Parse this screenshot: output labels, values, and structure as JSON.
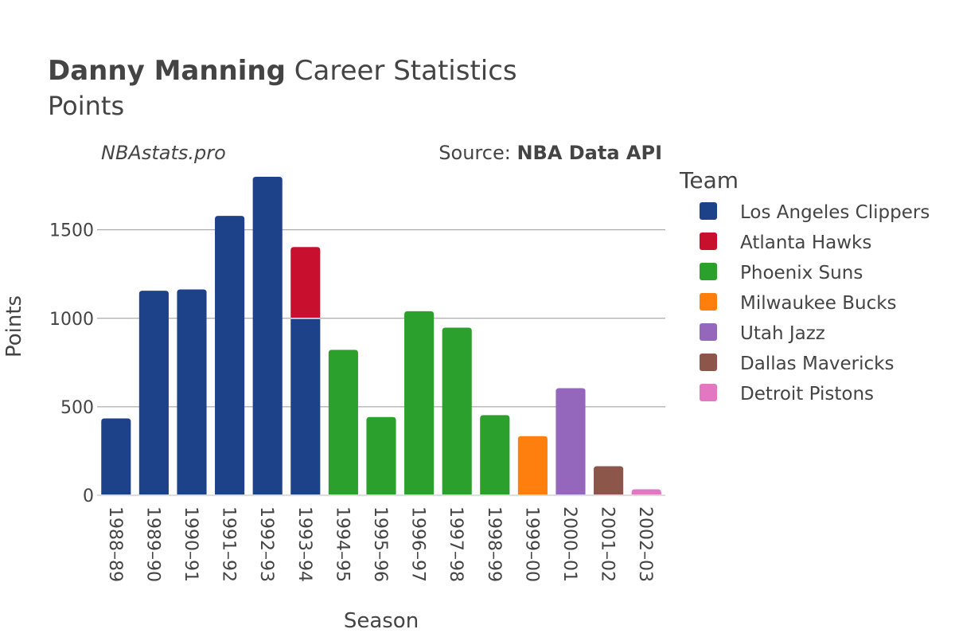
{
  "title": {
    "player": "Danny Manning",
    "rest": " Career Statistics",
    "subtitle": "Points"
  },
  "credits": {
    "site": "NBAstats.pro",
    "source_prefix": "Source: ",
    "source_name": "NBA Data API"
  },
  "legend": {
    "title": "Team",
    "items": [
      {
        "name": "Los Angeles Clippers",
        "color": "#1d428a"
      },
      {
        "name": "Atlanta Hawks",
        "color": "#c8102e"
      },
      {
        "name": "Phoenix Suns",
        "color": "#2ca02c"
      },
      {
        "name": "Milwaukee Bucks",
        "color": "#ff7f0e"
      },
      {
        "name": "Utah Jazz",
        "color": "#9467bd"
      },
      {
        "name": "Dallas Mavericks",
        "color": "#8c564b"
      },
      {
        "name": "Detroit Pistons",
        "color": "#e377c2"
      }
    ]
  },
  "chart_data": {
    "type": "bar",
    "stacked": true,
    "title": "Danny Manning Career Statistics",
    "subtitle": "Points",
    "xlabel": "Season",
    "ylabel": "Points",
    "ylim": [
      0,
      1800
    ],
    "yticks": [
      0,
      500,
      1000,
      1500
    ],
    "grid": true,
    "legend_position": "right",
    "categories": [
      "1988–89",
      "1989–90",
      "1990–91",
      "1991–92",
      "1992–93",
      "1993–94",
      "1994–95",
      "1995–96",
      "1996–97",
      "1997–98",
      "1998–99",
      "1999–00",
      "2000–01",
      "2001–02",
      "2002–03"
    ],
    "series": [
      {
        "name": "Los Angeles Clippers",
        "color": "#1d428a",
        "values": [
          434,
          1156,
          1163,
          1579,
          1800,
          1000,
          0,
          0,
          0,
          0,
          0,
          0,
          0,
          0,
          0
        ]
      },
      {
        "name": "Atlanta Hawks",
        "color": "#c8102e",
        "values": [
          0,
          0,
          0,
          0,
          0,
          403,
          0,
          0,
          0,
          0,
          0,
          0,
          0,
          0,
          0
        ]
      },
      {
        "name": "Phoenix Suns",
        "color": "#2ca02c",
        "values": [
          0,
          0,
          0,
          0,
          0,
          0,
          822,
          442,
          1040,
          947,
          453,
          0,
          0,
          0,
          0
        ]
      },
      {
        "name": "Milwaukee Bucks",
        "color": "#ff7f0e",
        "values": [
          0,
          0,
          0,
          0,
          0,
          0,
          0,
          0,
          0,
          0,
          0,
          334,
          0,
          0,
          0
        ]
      },
      {
        "name": "Utah Jazz",
        "color": "#9467bd",
        "values": [
          0,
          0,
          0,
          0,
          0,
          0,
          0,
          0,
          0,
          0,
          0,
          0,
          605,
          0,
          0
        ]
      },
      {
        "name": "Dallas Mavericks",
        "color": "#8c564b",
        "values": [
          0,
          0,
          0,
          0,
          0,
          0,
          0,
          0,
          0,
          0,
          0,
          0,
          0,
          164,
          0
        ]
      },
      {
        "name": "Detroit Pistons",
        "color": "#e377c2",
        "values": [
          0,
          0,
          0,
          0,
          0,
          0,
          0,
          0,
          0,
          0,
          0,
          0,
          0,
          0,
          34
        ]
      }
    ]
  }
}
